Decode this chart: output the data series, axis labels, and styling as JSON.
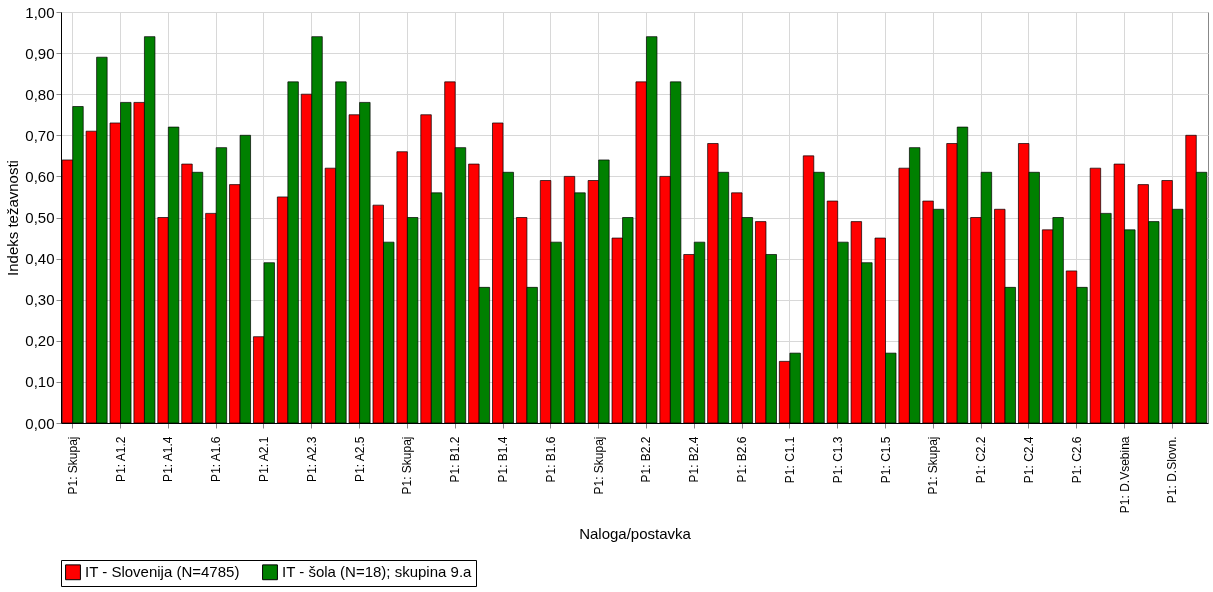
{
  "chart_data": {
    "type": "bar",
    "xlabel": "Naloga/postavka",
    "ylabel": "Indeks težavnosti",
    "categories": [
      "P1: Skupaj",
      null,
      "P1: A1.2",
      null,
      "P1: A1.4",
      null,
      "P1: A1.6",
      null,
      "P1: A2.1",
      null,
      "P1: A2.3",
      null,
      "P1: A2.5",
      null,
      "P1: Skupaj",
      null,
      "P1: B1.2",
      null,
      "P1: B1.4",
      null,
      "P1: B1.6",
      null,
      "P1: Skupaj",
      null,
      "P1: B2.2",
      null,
      "P1: B2.4",
      null,
      "P1: B2.6",
      null,
      "P1: C1.1",
      null,
      "P1: C1.3",
      null,
      "P1: C1.5",
      null,
      "P1: Skupaj",
      null,
      "P1: C2.2",
      null,
      "P1: C2.4",
      null,
      "P1: C2.6",
      null,
      "P1: D.Vsebina",
      null,
      "P1: D.Slovn.",
      null
    ],
    "series": [
      {
        "name": "IT - Slovenija (N=4785)",
        "color": "#ff0000",
        "values": [
          0.64,
          0.71,
          0.73,
          0.78,
          0.5,
          0.63,
          0.51,
          0.58,
          0.21,
          0.55,
          0.8,
          0.62,
          0.75,
          0.53,
          0.66,
          0.75,
          0.83,
          0.63,
          0.73,
          0.5,
          0.59,
          0.6,
          0.59,
          0.45,
          0.83,
          0.6,
          0.41,
          0.68,
          0.56,
          0.49,
          0.15,
          0.65,
          0.54,
          0.49,
          0.45,
          0.62,
          0.54,
          0.68,
          0.5,
          0.52,
          0.68,
          0.47,
          0.37,
          0.62,
          0.63,
          0.58,
          0.59,
          0.7
        ]
      },
      {
        "name": "IT - šola (N=18); skupina 9.a",
        "color": "#008000",
        "values": [
          0.77,
          0.89,
          0.78,
          0.94,
          0.72,
          0.61,
          0.67,
          0.7,
          0.39,
          0.83,
          0.94,
          0.83,
          0.78,
          0.44,
          0.5,
          0.56,
          0.67,
          0.33,
          0.61,
          0.33,
          0.44,
          0.56,
          0.64,
          0.5,
          0.94,
          0.83,
          0.44,
          0.61,
          0.5,
          0.41,
          0.17,
          0.61,
          0.44,
          0.39,
          0.17,
          0.67,
          0.52,
          0.72,
          0.61,
          0.33,
          0.61,
          0.5,
          0.33,
          0.51,
          0.47,
          0.49,
          0.52,
          0.61
        ]
      }
    ],
    "ylim": [
      0,
      1
    ],
    "yticks": [
      {
        "value": 0,
        "label": "0,00"
      },
      {
        "value": 0.1,
        "label": "0,10"
      },
      {
        "value": 0.2,
        "label": "0,20"
      },
      {
        "value": 0.3,
        "label": "0,30"
      },
      {
        "value": 0.4,
        "label": "0,40"
      },
      {
        "value": 0.5,
        "label": "0,50"
      },
      {
        "value": 0.6,
        "label": "0,60"
      },
      {
        "value": 0.7,
        "label": "0,70"
      },
      {
        "value": 0.8,
        "label": "0,80"
      },
      {
        "value": 0.9,
        "label": "0,90"
      },
      {
        "value": 1,
        "label": "1,00"
      }
    ],
    "grid": true,
    "legend": "bottom"
  }
}
